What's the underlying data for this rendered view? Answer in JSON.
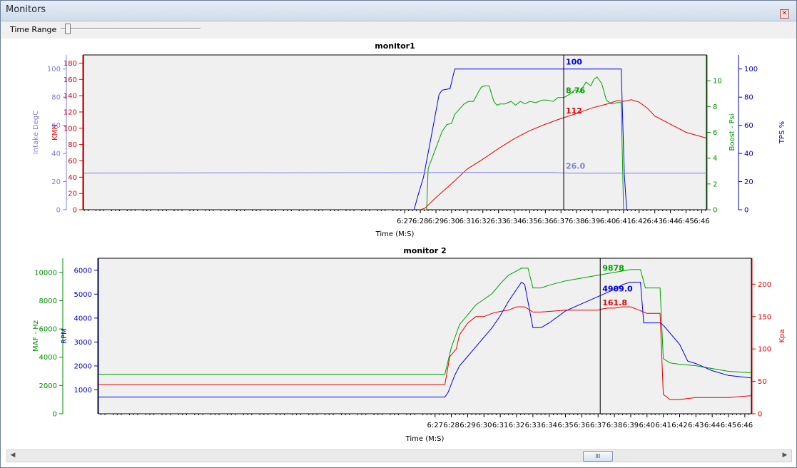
{
  "window": {
    "title": "Monitors",
    "close_icon": "✕"
  },
  "toolbar": {
    "time_range_label": "Time Range",
    "time_range_value": 0.03
  },
  "scrollbar": {
    "left": "◀",
    "right": "▶",
    "grip": "III",
    "position": 0.77
  },
  "chart_data": [
    {
      "type": "line",
      "title": "monitor1",
      "xlabel": "Time (M:S)",
      "x_ticks": [
        "6:27",
        "6:28",
        "6:29",
        "6:30",
        "6:31",
        "6:32",
        "6:33",
        "6:34",
        "6:35",
        "6:36",
        "6:37",
        "6:38",
        "6:39",
        "6:40",
        "6:41",
        "6:42",
        "6:43",
        "6:44",
        "6:45",
        "6:46"
      ],
      "xlim": [
        6.45,
        46.3
      ],
      "cursor_x": 37.17,
      "grid": false,
      "axes": [
        {
          "name": "Intake DegC",
          "side": "left",
          "color": "#8080e0",
          "ylim": [
            0,
            110
          ],
          "ticks": [
            0,
            20,
            40,
            60,
            80,
            100
          ]
        },
        {
          "name": "KMH",
          "side": "left",
          "color": "#e00000",
          "ylim": [
            0,
            190
          ],
          "ticks": [
            0,
            20,
            40,
            60,
            80,
            100,
            120,
            140,
            160,
            180
          ]
        },
        {
          "name": "Boost - Psi",
          "side": "right",
          "color": "#009000",
          "ylim": [
            0,
            12
          ],
          "ticks": [
            0,
            2,
            4,
            6,
            8,
            10
          ]
        },
        {
          "name": "TPS %",
          "side": "right",
          "color": "#0000cc",
          "ylim": [
            0,
            110
          ],
          "ticks": [
            0,
            20,
            40,
            60,
            80,
            100
          ]
        }
      ],
      "series": [
        {
          "axis": 3,
          "color": "#0000e0",
          "cursor_label": "100",
          "x": [
            27.6,
            27.9,
            28.2,
            28.7,
            29.2,
            29.4,
            29.9,
            30.2,
            30.8,
            31.5,
            32.5,
            33.5,
            34.5,
            35.5,
            36.5,
            37.5,
            38.5,
            39.5,
            40.5,
            40.85,
            41.05,
            41.2
          ],
          "y": [
            0,
            12,
            23,
            52,
            82,
            85,
            86,
            100,
            100,
            100,
            100,
            100,
            100,
            100,
            100,
            100,
            100,
            100,
            100,
            100,
            25,
            0
          ]
        },
        {
          "axis": 2,
          "color": "#00a000",
          "cursor_label": "8.76",
          "x": [
            28.0,
            28.4,
            28.5,
            29.0,
            29.4,
            29.7,
            30.0,
            30.2,
            30.5,
            30.8,
            31.1,
            31.4,
            31.7,
            31.9,
            32.1,
            32.4,
            32.7,
            32.9,
            33.1,
            33.4,
            33.8,
            34.1,
            34.4,
            34.7,
            35.0,
            35.4,
            35.8,
            36.1,
            36.5,
            36.8,
            37.2,
            37.6,
            37.9,
            38.2,
            38.6,
            38.9,
            39.1,
            39.3,
            39.6,
            39.9,
            40.2,
            40.6,
            40.85,
            41.0
          ],
          "y": [
            0,
            0,
            3.2,
            4.8,
            6.1,
            6.6,
            6.7,
            7.4,
            7.8,
            8.2,
            8.4,
            8.4,
            9.1,
            9.5,
            9.6,
            9.6,
            8.4,
            8.1,
            8.2,
            8.2,
            8.4,
            8.1,
            8.4,
            8.2,
            8.4,
            8.3,
            8.5,
            8.5,
            8.4,
            8.7,
            8.7,
            9.0,
            9.3,
            9.1,
            9.9,
            9.6,
            10.1,
            10.3,
            9.8,
            8.5,
            8.2,
            8.3,
            8.3,
            0
          ]
        },
        {
          "axis": 1,
          "color": "#e00000",
          "cursor_label": "112",
          "x": [
            28.0,
            28.3,
            29.0,
            30.0,
            31.0,
            32.0,
            33.0,
            34.0,
            35.0,
            36.0,
            37.0,
            38.0,
            39.0,
            40.0,
            40.6,
            41.0,
            41.5,
            42.0,
            42.5,
            43.0,
            44.0,
            45.0,
            46.3
          ],
          "y": [
            0,
            2,
            15,
            32,
            50,
            62,
            75,
            87,
            97,
            105,
            112,
            118,
            125,
            130,
            134,
            133,
            135,
            132,
            125,
            115,
            105,
            95,
            88
          ]
        },
        {
          "axis": 0,
          "color": "#8080e0",
          "cursor_label": "26.0",
          "x": [
            6.45,
            30.0,
            36.5,
            37.5,
            40.0,
            46.3
          ],
          "y": [
            26,
            26.5,
            26.5,
            26.0,
            26.0,
            26.0
          ]
        }
      ]
    },
    {
      "type": "line",
      "title": "monitor 2",
      "xlabel": "Time (M:S)",
      "x_ticks": [
        "6:27",
        "6:28",
        "6:29",
        "6:30",
        "6:31",
        "6:32",
        "6:33",
        "6:34",
        "6:35",
        "6:36",
        "6:37",
        "6:38",
        "6:39",
        "6:40",
        "6:41",
        "6:42",
        "6:43",
        "6:44",
        "6:45",
        "6:46"
      ],
      "xlim": [
        6.35,
        46.4
      ],
      "cursor_x": 37.13,
      "grid": false,
      "axes": [
        {
          "name": "MAF - Hz",
          "side": "left",
          "color": "#009000",
          "ylim": [
            0,
            11000
          ],
          "ticks": [
            0,
            2000,
            4000,
            6000,
            8000,
            10000
          ]
        },
        {
          "name": "RPM",
          "side": "left",
          "color": "#0000cc",
          "ylim": [
            0,
            6500
          ],
          "ticks": [
            1000,
            2000,
            3000,
            4000,
            5000,
            6000
          ]
        },
        {
          "name": "Kpa",
          "side": "right",
          "color": "#e00000",
          "ylim": [
            0,
            240
          ],
          "ticks": [
            0,
            50,
            100,
            150,
            200
          ]
        }
      ],
      "series": [
        {
          "axis": 0,
          "color": "#00a000",
          "cursor_label": "9878",
          "x": [
            6.35,
            27.6,
            28.0,
            28.5,
            29.0,
            29.5,
            30.0,
            30.5,
            31.0,
            31.5,
            32.0,
            32.3,
            32.5,
            32.7,
            33.0,
            33.5,
            34.0,
            35.0,
            36.0,
            37.0,
            38.0,
            39.0,
            39.6,
            39.9,
            40.2,
            40.8,
            41.0,
            41.4,
            42.0,
            43.0,
            44.0,
            45.0,
            46.4
          ],
          "y": [
            2800,
            2800,
            4700,
            6300,
            7000,
            7700,
            8100,
            8500,
            9200,
            9800,
            10100,
            10300,
            10300,
            10300,
            8900,
            8900,
            9100,
            9400,
            9600,
            9800,
            10000,
            10200,
            10200,
            8900,
            8900,
            8900,
            3900,
            3600,
            3500,
            3400,
            3200,
            3000,
            2900
          ]
        },
        {
          "axis": 1,
          "color": "#0000e0",
          "cursor_label": "4909.0",
          "x": [
            6.35,
            27.6,
            27.8,
            28.2,
            28.5,
            29.0,
            29.5,
            30.0,
            30.5,
            31.0,
            31.5,
            32.0,
            32.3,
            32.5,
            33.0,
            33.5,
            34.0,
            35.0,
            36.0,
            37.0,
            38.0,
            38.5,
            39.0,
            39.6,
            39.8,
            40.3,
            40.8,
            41.0,
            42.0,
            42.5,
            43.0,
            44.0,
            45.0,
            46.4
          ],
          "y": [
            700,
            700,
            900,
            1600,
            2000,
            2400,
            2800,
            3200,
            3600,
            4100,
            4700,
            5200,
            5500,
            5400,
            3600,
            3600,
            3800,
            4300,
            4600,
            4900,
            5200,
            5400,
            5500,
            5500,
            3800,
            3800,
            3800,
            3700,
            2900,
            2200,
            2100,
            1800,
            1600,
            1500
          ]
        },
        {
          "axis": 2,
          "color": "#e00000",
          "cursor_label": "161.8",
          "x": [
            6.35,
            27.6,
            27.9,
            28.3,
            28.5,
            29.0,
            29.5,
            30.0,
            30.5,
            31.0,
            31.5,
            32.0,
            32.5,
            33.0,
            33.5,
            34.0,
            35.0,
            36.0,
            37.0,
            37.3,
            37.6,
            38.0,
            38.5,
            39.0,
            39.5,
            40.0,
            40.3,
            40.8,
            41.0,
            41.4,
            42.0,
            43.0,
            44.0,
            45.0,
            46.4
          ],
          "y": [
            45,
            45,
            88,
            100,
            122,
            140,
            150,
            150,
            155,
            158,
            160,
            165,
            165,
            157,
            157,
            158,
            160,
            160,
            160,
            162,
            163,
            163,
            165,
            165,
            160,
            155,
            155,
            155,
            30,
            22,
            22,
            25,
            25,
            25,
            28
          ]
        }
      ]
    }
  ]
}
